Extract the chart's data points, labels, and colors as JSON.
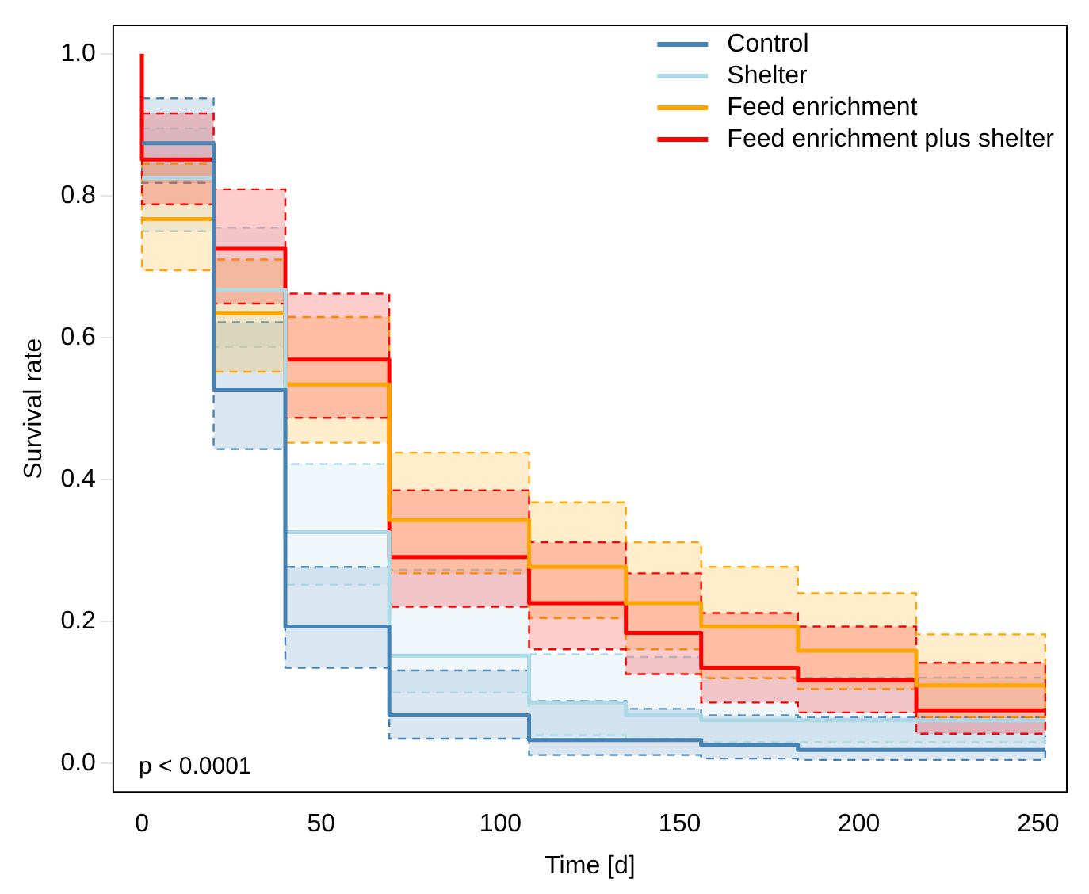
{
  "chart_data": {
    "type": "step",
    "xlabel": "Time [d]",
    "ylabel": "Survival rate",
    "xlim": [
      -8,
      258
    ],
    "ylim": [
      -0.04,
      1.04
    ],
    "xticks": [
      0,
      50,
      100,
      150,
      200,
      250
    ],
    "yticks": [
      {
        "value": 0,
        "label": "0.0"
      },
      0.2,
      0.4,
      0.6,
      0.8,
      {
        "value": 1,
        "label": "1.0"
      }
    ],
    "x": [
      0,
      20,
      40,
      69,
      108,
      135,
      156,
      183,
      216,
      252
    ],
    "series": [
      {
        "name": "Control",
        "color": "#4682b4",
        "values": [
          0.874,
          0.527,
          0.193,
          0.068,
          0.033,
          0.033,
          0.026,
          0.019,
          0.019,
          0.019
        ],
        "upper": [
          0.937,
          0.622,
          0.277,
          0.131,
          0.088,
          0.077,
          0.068,
          0.065,
          0.065,
          0.065
        ],
        "lower": [
          0.818,
          0.443,
          0.135,
          0.035,
          0.012,
          0.012,
          0.007,
          0.005,
          0.005,
          0.005
        ]
      },
      {
        "name": "Shelter",
        "color": "#add8e6",
        "values": [
          0.825,
          0.667,
          0.326,
          0.152,
          0.086,
          0.068,
          0.061,
          0.061,
          0.061,
          0.061
        ],
        "upper": [
          0.895,
          0.755,
          0.422,
          0.273,
          0.154,
          0.15,
          0.121,
          0.121,
          0.121,
          0.121
        ],
        "lower": [
          0.75,
          0.587,
          0.252,
          0.1,
          0.04,
          0.035,
          0.03,
          0.03,
          0.03,
          0.03
        ]
      },
      {
        "name": "Feed enrichment",
        "color": "#ffa500",
        "values": [
          0.767,
          0.634,
          0.534,
          0.343,
          0.277,
          0.226,
          0.193,
          0.159,
          0.11,
          0.11
        ],
        "upper": [
          0.845,
          0.71,
          0.629,
          0.438,
          0.368,
          0.312,
          0.277,
          0.24,
          0.182,
          0.182
        ],
        "lower": [
          0.695,
          0.552,
          0.452,
          0.268,
          0.205,
          0.161,
          0.12,
          0.105,
          0.065,
          0.065
        ]
      },
      {
        "name": "Feed enrichment plus shelter",
        "color": "#ff0000",
        "x": [
          0,
          0,
          20,
          40,
          69,
          108,
          135,
          156,
          183,
          216,
          252
        ],
        "values": [
          1,
          0.851,
          0.725,
          0.569,
          0.291,
          0.226,
          0.184,
          0.135,
          0.117,
          0.075,
          0.075
        ],
        "upper": [
          null,
          0.916,
          0.809,
          0.662,
          0.385,
          0.312,
          0.268,
          0.212,
          0.193,
          0.142,
          0.142
        ],
        "lower": [
          null,
          0.788,
          0.648,
          0.487,
          0.221,
          0.161,
          0.126,
          0.086,
          0.072,
          0.042,
          0.042
        ]
      }
    ],
    "legend": "top right",
    "grid": false,
    "line_style": "solid",
    "marker": "none",
    "annotations": [
      "p < 0.0001"
    ]
  }
}
